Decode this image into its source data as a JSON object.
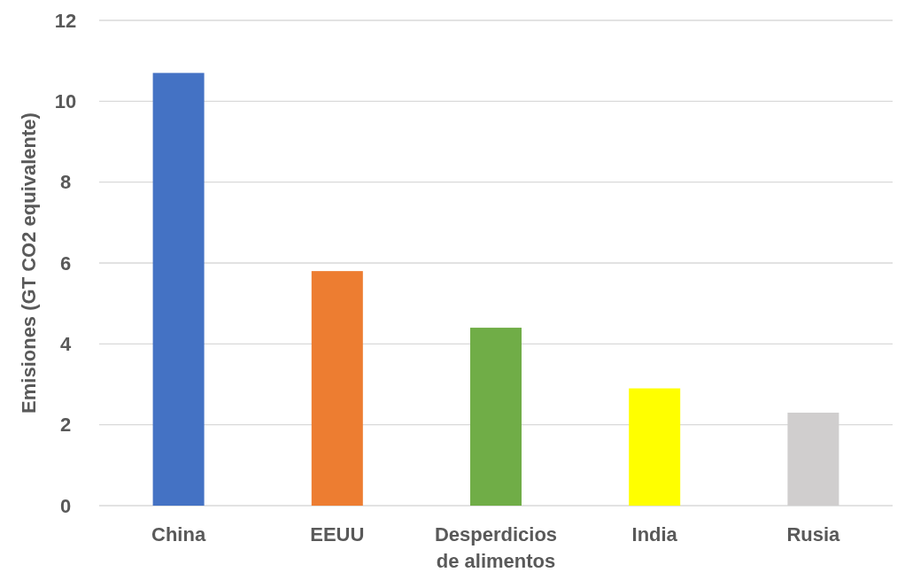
{
  "chart_data": {
    "type": "bar",
    "ylabel": "Emisiones (GT CO2 equivalente)",
    "categories": [
      "China",
      "EEUU",
      "Desperdicios de alimentos",
      "India",
      "Rusia"
    ],
    "values": [
      10.7,
      5.8,
      4.4,
      2.9,
      2.3
    ],
    "colors": [
      "#4472c4",
      "#ed7d31",
      "#70ad47",
      "#ffff00",
      "#d0cece"
    ],
    "ylim": [
      0,
      12
    ],
    "yticks": [
      0,
      2,
      4,
      6,
      8,
      10,
      12
    ],
    "grid": "y"
  }
}
